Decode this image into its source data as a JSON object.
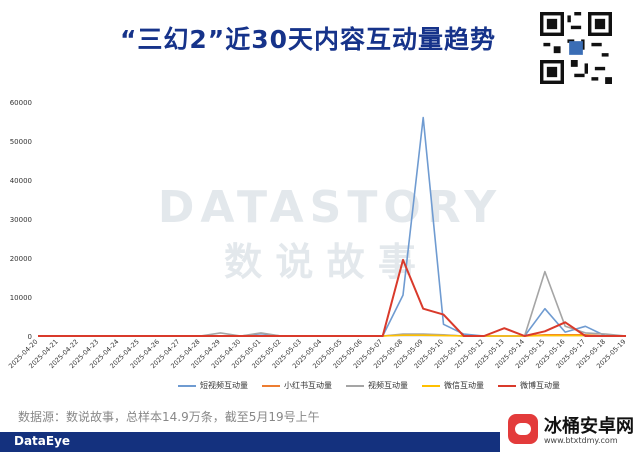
{
  "title": "“三幻2”近30天内容互动量趋势",
  "source_note": "数据源：数说故事，总样本14.9万条，截至5月19号上午",
  "footer_logo": "DataEye",
  "watermark": {
    "brand": "DATASTORY",
    "chinese": "数 说 故 事"
  },
  "site_badge": {
    "name": "冰桶安卓网",
    "url": "www.btxtdmy.com"
  },
  "colors": {
    "title": "#16338a",
    "footer": "#14317e",
    "badge_red": "#e33b3b"
  },
  "chart_data": {
    "type": "line",
    "title": "",
    "xlabel": "",
    "ylabel": "",
    "ylim": [
      0,
      60000
    ],
    "yticks": [
      0,
      10000,
      20000,
      30000,
      40000,
      50000,
      60000
    ],
    "grid": false,
    "legend_position": "bottom",
    "x": [
      "2025-04-20",
      "2025-04-21",
      "2025-04-22",
      "2025-04-23",
      "2025-04-24",
      "2025-04-25",
      "2025-04-26",
      "2025-04-27",
      "2025-04-28",
      "2025-04-29",
      "2025-04-30",
      "2025-05-01",
      "2025-05-02",
      "2025-05-03",
      "2025-05-04",
      "2025-05-05",
      "2025-05-06",
      "2025-05-07",
      "2025-05-08",
      "2025-05-09",
      "2025-05-10",
      "2025-05-11",
      "2025-05-12",
      "2025-05-13",
      "2025-05-14",
      "2025-05-15",
      "2025-05-16",
      "2025-05-17",
      "2025-05-18",
      "2025-05-19"
    ],
    "series": [
      {
        "name": "短视频互动量",
        "color": "#6f9bd1",
        "values": [
          0,
          0,
          0,
          0,
          0,
          0,
          0,
          0,
          0,
          0,
          0,
          600,
          0,
          0,
          0,
          0,
          0,
          0,
          10500,
          56000,
          3000,
          500,
          0,
          0,
          0,
          7000,
          1000,
          2500,
          0,
          0
        ]
      },
      {
        "name": "小红书互动量",
        "color": "#ed7d31",
        "values": [
          0,
          0,
          0,
          0,
          0,
          0,
          0,
          0,
          0,
          0,
          0,
          0,
          0,
          0,
          0,
          0,
          0,
          0,
          300,
          300,
          200,
          0,
          0,
          0,
          0,
          300,
          300,
          300,
          0,
          0
        ]
      },
      {
        "name": "视频互动量",
        "color": "#a5a5a5",
        "values": [
          0,
          0,
          0,
          0,
          0,
          0,
          0,
          0,
          0,
          800,
          0,
          800,
          0,
          0,
          0,
          0,
          0,
          0,
          500,
          500,
          300,
          0,
          0,
          0,
          0,
          16500,
          2500,
          800,
          500,
          0
        ]
      },
      {
        "name": "微信互动量",
        "color": "#ffc000",
        "values": [
          0,
          0,
          0,
          0,
          0,
          0,
          0,
          0,
          0,
          0,
          0,
          0,
          0,
          0,
          0,
          0,
          0,
          0,
          200,
          200,
          100,
          0,
          0,
          0,
          0,
          100,
          100,
          100,
          0,
          0
        ]
      },
      {
        "name": "微博互动量",
        "color": "#d93a2b",
        "values": [
          0,
          0,
          0,
          0,
          0,
          0,
          0,
          0,
          0,
          0,
          0,
          0,
          0,
          0,
          0,
          0,
          0,
          0,
          19500,
          7000,
          5500,
          0,
          0,
          2000,
          0,
          1200,
          3500,
          0,
          0,
          0
        ]
      }
    ]
  }
}
